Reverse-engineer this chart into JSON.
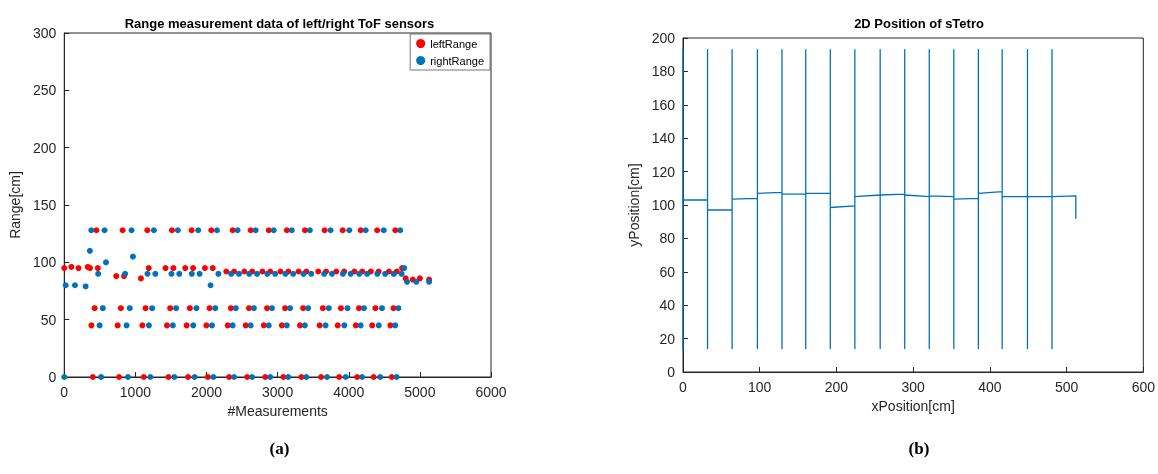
{
  "chart_data": [
    {
      "type": "scatter",
      "title": "Range measurement data of left/right ToF sensors",
      "xlabel": "#Measurements",
      "ylabel": "Range[cm]",
      "annotations": [
        "(a)"
      ],
      "xlim": [
        0,
        6000
      ],
      "xticks": [
        0,
        1000,
        2000,
        3000,
        4000,
        5000,
        6000
      ],
      "ylim": [
        0,
        300
      ],
      "yticks": [
        0,
        50,
        100,
        150,
        200,
        250,
        300
      ],
      "grid": false,
      "legend": "top right",
      "marker": "circle",
      "series": [
        {
          "name": "leftRange",
          "color": "#ff0000",
          "x": [
            0,
            100,
            200,
            330,
            362,
            382,
            402,
            427,
            452,
            472,
            731,
            751,
            771,
            796,
            821,
            841,
            1078,
            1098,
            1118,
            1143,
            1168,
            1188,
            1424,
            1444,
            1464,
            1489,
            1514,
            1534,
            1701,
            1721,
            1741,
            1766,
            1791,
            1811,
            1978,
            1998,
            2018,
            2043,
            2068,
            2088,
            2278,
            2298,
            2318,
            2343,
            2368,
            2388,
            2532,
            2552,
            2572,
            2597,
            2622,
            2642,
            2786,
            2806,
            2826,
            2851,
            2876,
            2896,
            3040,
            3060,
            3080,
            3105,
            3130,
            3150,
            3294,
            3314,
            3334,
            3359,
            3384,
            3404,
            3571,
            3591,
            3611,
            3636,
            3661,
            3681,
            3825,
            3845,
            3865,
            3890,
            3915,
            3935,
            4079,
            4099,
            4119,
            4144,
            4169,
            4189,
            4310,
            4330,
            4350,
            4375,
            4400,
            4420,
            4565,
            4585,
            4605,
            4630,
            4655,
            4675,
            4750,
            4800,
            4900,
            5000,
            5130
          ],
          "values": [
            95,
            96,
            95,
            96,
            95,
            45,
            0,
            60,
            128,
            95,
            88,
            45,
            0,
            60,
            128,
            88,
            86,
            45,
            0,
            60,
            128,
            95,
            95,
            45,
            0,
            60,
            128,
            95,
            95,
            45,
            0,
            60,
            128,
            95,
            95,
            45,
            0,
            60,
            128,
            95,
            92,
            45,
            0,
            60,
            128,
            92,
            92,
            45,
            0,
            60,
            128,
            92,
            92,
            45,
            0,
            60,
            128,
            92,
            92,
            45,
            0,
            60,
            128,
            92,
            92,
            45,
            0,
            60,
            128,
            92,
            92,
            45,
            0,
            60,
            128,
            92,
            92,
            45,
            0,
            60,
            128,
            92,
            92,
            45,
            0,
            60,
            128,
            92,
            92,
            45,
            0,
            60,
            128,
            92,
            92,
            45,
            0,
            60,
            128,
            92,
            95,
            86,
            85,
            86,
            85
          ]
        },
        {
          "name": "rightRange",
          "color": "#0072bd",
          "x": [
            0,
            20,
            150,
            300,
            360,
            380,
            477,
            497,
            517,
            542,
            567,
            587,
            856,
            876,
            896,
            921,
            946,
            966,
            1170,
            1190,
            1210,
            1235,
            1260,
            1280,
            1507,
            1527,
            1547,
            1572,
            1597,
            1617,
            1793,
            1813,
            1833,
            1858,
            1883,
            1903,
            2057,
            2077,
            2097,
            2122,
            2147,
            2167,
            2347,
            2367,
            2387,
            2412,
            2437,
            2457,
            2601,
            2621,
            2641,
            2666,
            2691,
            2711,
            2855,
            2875,
            2895,
            2920,
            2945,
            2965,
            3109,
            3129,
            3149,
            3174,
            3199,
            3219,
            3363,
            3383,
            3403,
            3428,
            3453,
            3473,
            3654,
            3674,
            3694,
            3719,
            3744,
            3764,
            3917,
            3937,
            3957,
            3982,
            4007,
            4027,
            4148,
            4168,
            4188,
            4213,
            4238,
            4258,
            4402,
            4422,
            4442,
            4467,
            4492,
            4512,
            4633,
            4653,
            4673,
            4698,
            4723,
            4743,
            4780,
            4820,
            4950,
            5130
          ],
          "values": [
            0,
            80,
            80,
            79,
            110,
            128,
            90,
            45,
            0,
            60,
            128,
            100,
            90,
            45,
            0,
            60,
            128,
            105,
            90,
            45,
            0,
            60,
            128,
            90,
            90,
            45,
            0,
            60,
            128,
            90,
            90,
            45,
            0,
            60,
            128,
            90,
            80,
            45,
            0,
            60,
            128,
            90,
            90,
            45,
            0,
            60,
            128,
            90,
            90,
            45,
            0,
            60,
            128,
            90,
            90,
            45,
            0,
            60,
            128,
            90,
            90,
            45,
            0,
            60,
            128,
            90,
            90,
            45,
            0,
            60,
            128,
            90,
            90,
            45,
            0,
            60,
            128,
            90,
            90,
            45,
            0,
            60,
            128,
            90,
            90,
            45,
            0,
            60,
            128,
            90,
            90,
            45,
            0,
            60,
            128,
            90,
            90,
            45,
            0,
            60,
            128,
            90,
            95,
            83,
            83,
            83
          ]
        }
      ]
    },
    {
      "type": "line",
      "title": "2D Position of sTetro",
      "xlabel": "xPosition[cm]",
      "ylabel": "yPosition[cm]",
      "annotations": [
        "(b)"
      ],
      "xlim": [
        0,
        600
      ],
      "xticks": [
        0,
        100,
        200,
        300,
        400,
        500,
        600
      ],
      "ylim": [
        0,
        200
      ],
      "yticks": [
        0,
        20,
        40,
        60,
        80,
        100,
        120,
        140,
        160,
        180,
        200
      ],
      "grid": false,
      "legend": false,
      "marker": "none",
      "line_style": "solid",
      "series": [
        {
          "color": "#0072bd",
          "x": [
            0,
            0,
            0,
            32,
            32,
            32,
            32,
            64,
            64,
            64,
            64,
            97,
            97,
            97,
            97,
            129,
            129,
            129,
            129,
            160,
            160,
            160,
            160,
            192,
            192,
            192,
            192,
            224,
            224,
            224,
            224,
            257,
            257,
            257,
            257,
            289,
            289,
            289,
            289,
            321,
            321,
            321,
            321,
            353,
            353,
            353,
            353,
            385,
            385,
            385,
            385,
            416,
            416,
            416,
            416,
            449,
            449,
            449,
            449,
            481,
            481,
            481,
            481,
            512,
            512,
            512
          ],
          "values": [
            14,
            193,
            103,
            103,
            193,
            14,
            97,
            97,
            193,
            14,
            103.5,
            104,
            193,
            14,
            107,
            107.5,
            193,
            14,
            106.5,
            106.5,
            193,
            14,
            107,
            107,
            193,
            14,
            98.5,
            99.5,
            193,
            14,
            105,
            106,
            193,
            14,
            106,
            106.5,
            193,
            14,
            106,
            105,
            193,
            14,
            105.5,
            105,
            193,
            14,
            103.5,
            104,
            193,
            14,
            107,
            108,
            193,
            14,
            105,
            105,
            193,
            14,
            105,
            105,
            193,
            14,
            105,
            105.5,
            92,
            105
          ]
        }
      ]
    }
  ]
}
